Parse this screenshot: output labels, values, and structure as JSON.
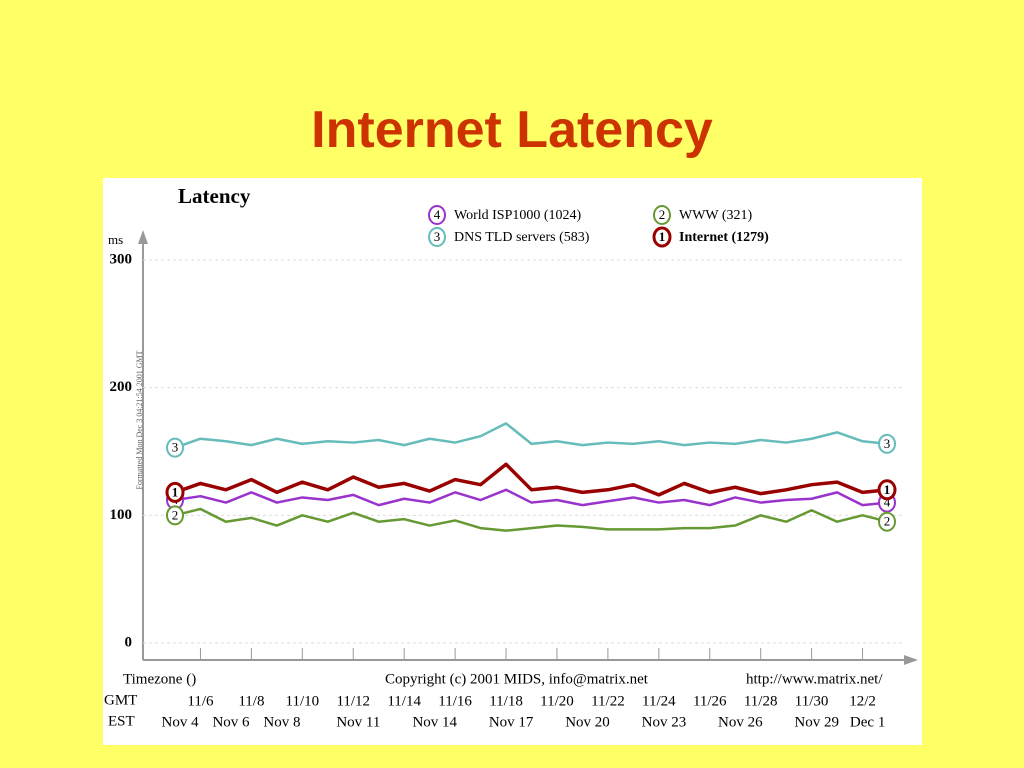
{
  "slide_title": "Internet Latency",
  "chart_data": {
    "type": "line",
    "title": "Latency",
    "y_label": "ms",
    "timezone_label": "Timezone ()",
    "copyright": "Copyright (c) 2001 MIDS, info@matrix.net",
    "url": "http://www.matrix.net/",
    "side_note": "Formatted Mon Dec 3 04:21:54 2001 GMT",
    "gmt_label": "GMT",
    "est_label": "EST",
    "x": [
      5,
      6,
      7,
      8,
      9,
      10,
      11,
      12,
      13,
      14,
      15,
      16,
      17,
      18,
      19,
      20,
      21,
      22,
      23,
      24,
      25,
      26,
      27,
      28,
      29,
      30,
      31,
      32,
      33
    ],
    "xlim": [
      5,
      33
    ],
    "xticks": [
      {
        "value": 6,
        "label": "11/6"
      },
      {
        "value": 8,
        "label": "11/8"
      },
      {
        "value": 10,
        "label": "11/10"
      },
      {
        "value": 12,
        "label": "11/12"
      },
      {
        "value": 14,
        "label": "11/14"
      },
      {
        "value": 16,
        "label": "11/16"
      },
      {
        "value": 18,
        "label": "11/18"
      },
      {
        "value": 20,
        "label": "11/20"
      },
      {
        "value": 22,
        "label": "11/22"
      },
      {
        "value": 24,
        "label": "11/24"
      },
      {
        "value": 26,
        "label": "11/26"
      },
      {
        "value": 28,
        "label": "11/28"
      },
      {
        "value": 30,
        "label": "11/30"
      },
      {
        "value": 32,
        "label": "12/2"
      }
    ],
    "est_ticks": [
      {
        "value": 5.2,
        "label": "Nov 4"
      },
      {
        "value": 7.2,
        "label": "Nov 6"
      },
      {
        "value": 9.2,
        "label": "Nov 8"
      },
      {
        "value": 12.2,
        "label": "Nov 11"
      },
      {
        "value": 15.2,
        "label": "Nov 14"
      },
      {
        "value": 18.2,
        "label": "Nov 17"
      },
      {
        "value": 21.2,
        "label": "Nov 20"
      },
      {
        "value": 24.2,
        "label": "Nov 23"
      },
      {
        "value": 27.2,
        "label": "Nov 26"
      },
      {
        "value": 30.2,
        "label": "Nov 29"
      },
      {
        "value": 32.2,
        "label": "Dec 1"
      }
    ],
    "ylim": [
      0,
      300
    ],
    "yticks": [
      0,
      100,
      200,
      300
    ],
    "grid": true,
    "series": [
      {
        "name": "World ISP1000 (1024)",
        "marker": "4",
        "color": "#9933cc",
        "values": [
          112,
          115,
          110,
          118,
          110,
          114,
          112,
          116,
          108,
          113,
          110,
          118,
          112,
          120,
          110,
          112,
          108,
          111,
          114,
          110,
          112,
          108,
          114,
          110,
          112,
          113,
          118,
          108,
          110
        ]
      },
      {
        "name": "WWW (321)",
        "marker": "2",
        "color": "#669933",
        "values": [
          100,
          105,
          95,
          98,
          92,
          100,
          95,
          102,
          95,
          97,
          92,
          96,
          90,
          88,
          90,
          92,
          91,
          89,
          89,
          89,
          90,
          90,
          92,
          100,
          95,
          104,
          95,
          100,
          95
        ]
      },
      {
        "name": "DNS TLD servers (583)",
        "marker": "3",
        "color": "#66bbbb",
        "values": [
          153,
          160,
          158,
          155,
          160,
          156,
          158,
          157,
          159,
          155,
          160,
          157,
          162,
          172,
          156,
          158,
          155,
          157,
          156,
          158,
          155,
          157,
          156,
          159,
          157,
          160,
          165,
          158,
          156
        ]
      },
      {
        "name": "Internet (1279)",
        "marker": "1",
        "color": "#990000",
        "values": [
          118,
          125,
          120,
          128,
          118,
          126,
          120,
          130,
          122,
          125,
          119,
          128,
          124,
          140,
          120,
          122,
          118,
          120,
          124,
          116,
          125,
          118,
          122,
          117,
          120,
          124,
          126,
          118,
          120
        ]
      }
    ]
  }
}
